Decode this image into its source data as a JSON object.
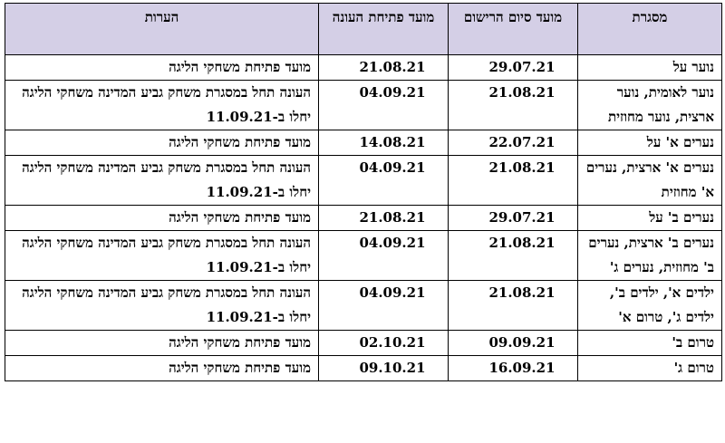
{
  "headers": {
    "category": "מסגרת",
    "registration_end": "מועד סיום הרישום",
    "season_open": "מועד פתיחת העונה",
    "notes": "הערות"
  },
  "rows": [
    {
      "category": "נוער על",
      "registration_end": "29.07.21",
      "season_open": "21.08.21",
      "notes": "מועד פתיחת משחקי הליגה"
    },
    {
      "category": "נוער לאומית, נוער ארצית, נוער מחוזית",
      "registration_end": "21.08.21",
      "season_open": "04.09.21",
      "notes": "העונה תחל במסגרת משחק גביע המדינה משחקי הליגה יחלו ב-11.09.21"
    },
    {
      "category": "נערים א' על",
      "registration_end": "22.07.21",
      "season_open": "14.08.21",
      "notes": "מועד פתיחת משחקי הליגה"
    },
    {
      "category": "נערים א' ארצית, נערים א' מחוזית",
      "registration_end": "21.08.21",
      "season_open": "04.09.21",
      "notes": "העונה תחל במסגרת משחק גביע המדינה משחקי הליגה יחלו ב-11.09.21"
    },
    {
      "category": "נערים ב' על",
      "registration_end": "29.07.21",
      "season_open": "21.08.21",
      "notes": "מועד פתיחת משחקי הליגה"
    },
    {
      "category": "נערים ב' ארצית, נערים ב' מחוזית, נערים ג'",
      "registration_end": "21.08.21",
      "season_open": "04.09.21",
      "notes": "העונה תחל במסגרת משחק גביע המדינה משחקי הליגה יחלו ב-11.09.21"
    },
    {
      "category": "ילדים א', ילדים ב', ילדים ג', טרום א'",
      "registration_end": "21.08.21",
      "season_open": "04.09.21",
      "notes": "העונה תחל במסגרת משחק גביע המדינה משחקי הליגה יחלו ב-11.09.21"
    },
    {
      "category": "טרום ב'",
      "registration_end": "09.09.21",
      "season_open": "02.10.21",
      "notes": "מועד פתיחת משחקי הליגה"
    },
    {
      "category": "טרום ג'",
      "registration_end": "16.09.21",
      "season_open": "09.10.21",
      "notes": "מועד פתיחת משחקי הליגה"
    }
  ],
  "colors": {
    "header_bg": "#d4cfe6",
    "border": "#000000",
    "text": "#000000"
  }
}
